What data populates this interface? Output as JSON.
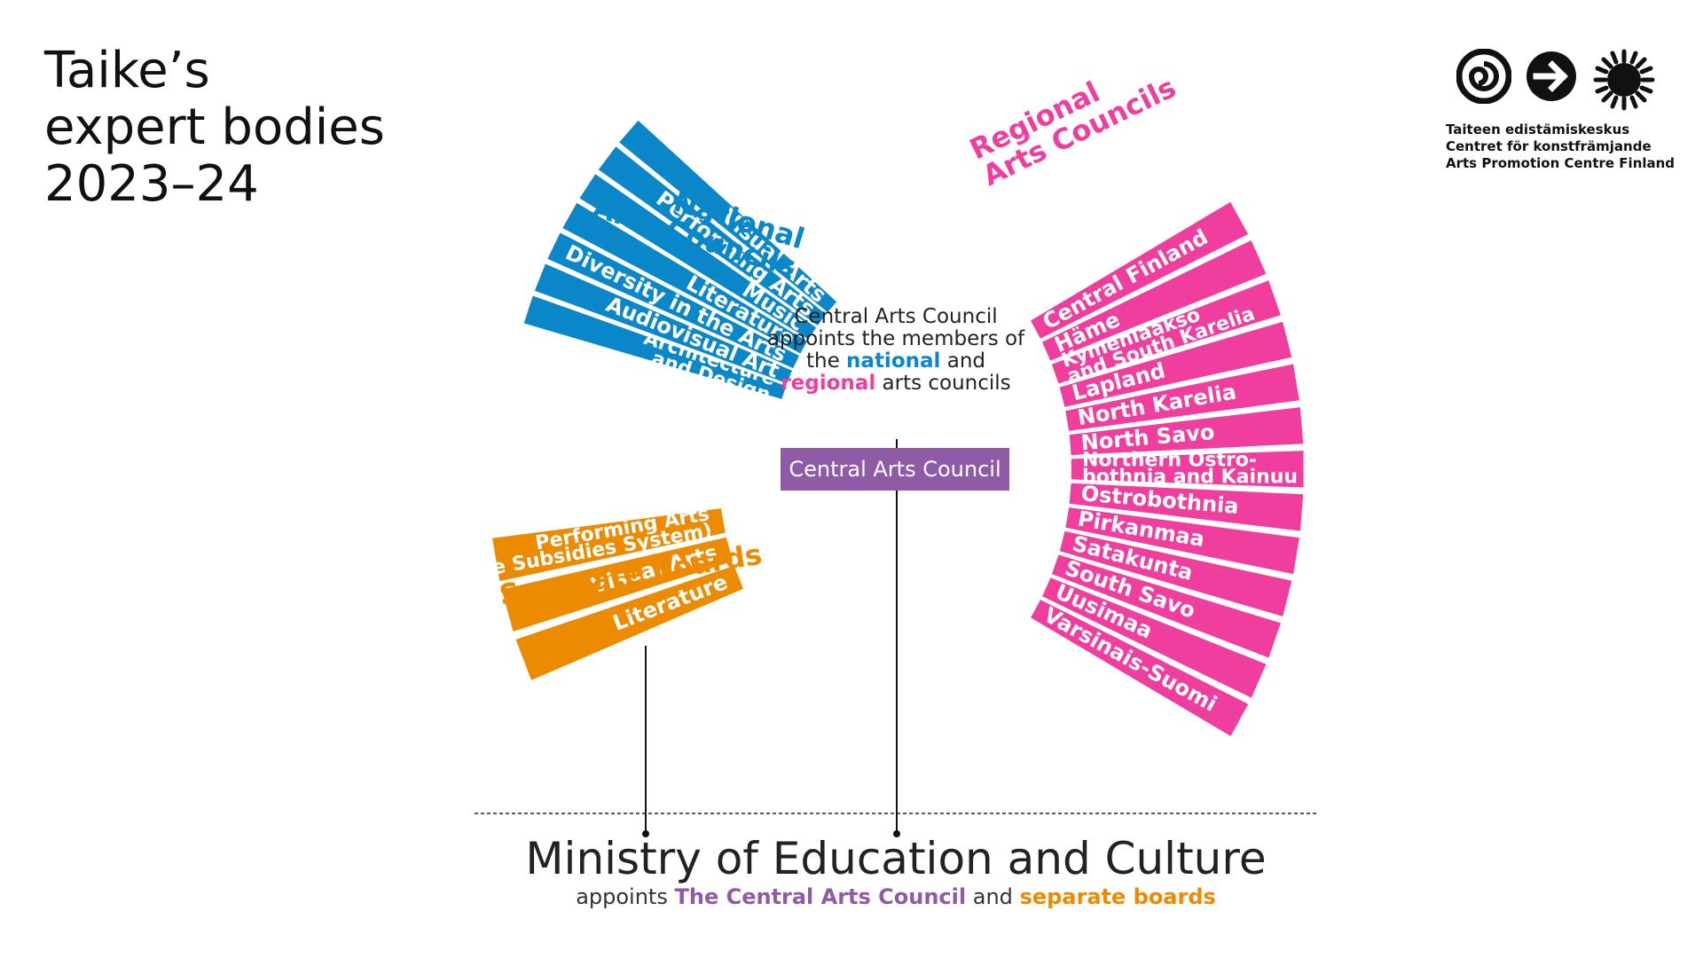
{
  "title": {
    "line1": "Taike’s",
    "line2": "expert bodies",
    "line3": "2023–24"
  },
  "logo": {
    "icons": [
      "spiral-icon",
      "arrow-circle-icon",
      "sun-icon"
    ],
    "line1": "Taiteen edistämiskeskus",
    "line2": "Centret för konstfrämjande",
    "line3": "Arts Promotion Centre Finland"
  },
  "colors": {
    "national": "#0a87c8",
    "regional": "#ef3e9e",
    "separate": "#ec8a00",
    "central": "#8f5aa6"
  },
  "national": {
    "title_line1": "National",
    "title_line2": "Arts Councils",
    "items": [
      [
        "Architecture",
        "and Design"
      ],
      [
        "Audiovisual Art"
      ],
      [
        "Diversity in the Arts"
      ],
      [
        "Literature"
      ],
      [
        "Music"
      ],
      [
        "Performing Arts"
      ],
      [
        "Visual Arts"
      ]
    ]
  },
  "separate": {
    "title": "Separate boards",
    "items": [
      [
        "Literature"
      ],
      [
        "Visual Arts"
      ],
      [
        "Performing Arts",
        "(State Subsidies System)"
      ]
    ]
  },
  "regional": {
    "title_line1": "Regional",
    "title_line2": "Arts Councils",
    "items": [
      [
        "Central Finland"
      ],
      [
        "Häme"
      ],
      [
        "Kymenlaakso",
        "and South Karelia"
      ],
      [
        "Lapland"
      ],
      [
        "North Karelia"
      ],
      [
        "North Savo"
      ],
      [
        "Northern Ostro-",
        "bothnia and Kainuu"
      ],
      [
        "Ostrobothnia"
      ],
      [
        "Pirkanmaa"
      ],
      [
        "Satakunta"
      ],
      [
        "South Savo"
      ],
      [
        "Uusimaa"
      ],
      [
        "Varsinais-Suomi"
      ]
    ]
  },
  "central": {
    "appoint_pre": "Central Arts Council appoints the members of the",
    "appoint_national": "national",
    "appoint_and": "and",
    "appoint_regional": "regional",
    "appoint_post": "arts councils",
    "box_label": "Central Arts Council"
  },
  "ministry": {
    "title": "Ministry of Education and Culture",
    "sub_pre": "appoints",
    "sub_cac": "The Central Arts Council",
    "sub_and": "and",
    "sub_sep": "separate boards"
  }
}
